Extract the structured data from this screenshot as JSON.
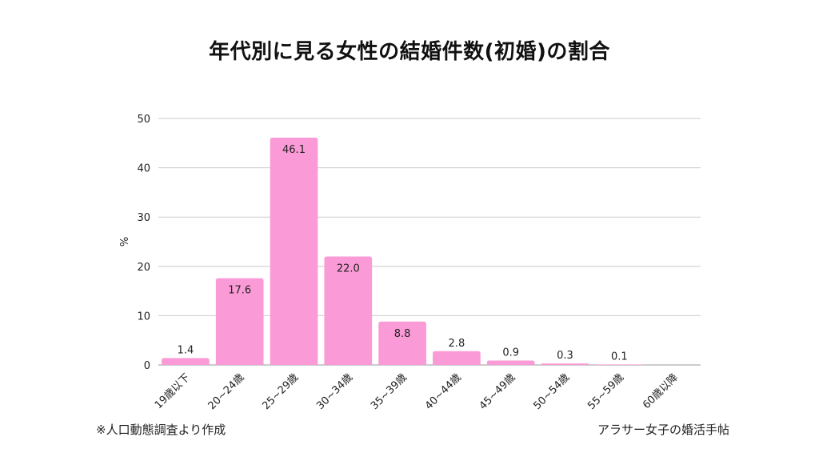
{
  "title": "年代別に見る女性の結婚件数(初婚)の割合",
  "footer": {
    "source": "※人口動態調査より作成",
    "credit": "アラサー女子の婚活手帖"
  },
  "colors": {
    "bar": "#fa9ad6",
    "grid": "#cccccc",
    "axis": "#999999",
    "text": "#222222"
  },
  "chart_data": {
    "type": "bar",
    "title": "年代別に見る女性の結婚件数(初婚)の割合",
    "ylabel": "%",
    "xlabel": "",
    "ylim": [
      0,
      50
    ],
    "yticks": [
      0,
      10,
      20,
      30,
      40,
      50
    ],
    "grid": true,
    "categories": [
      "19歳以下",
      "20~24歳",
      "25~29歳",
      "30~34歳",
      "35~39歳",
      "40~44歳",
      "45~49歳",
      "50~54歳",
      "55~59歳",
      "60歳以降"
    ],
    "values": [
      1.4,
      17.6,
      46.1,
      22.0,
      8.8,
      2.8,
      0.9,
      0.3,
      0.1,
      0.0
    ],
    "data_labels": [
      "1.4",
      "17.6",
      "46.1",
      "22.0",
      "8.8",
      "2.8",
      "0.9",
      "0.3",
      "0.1",
      ""
    ]
  }
}
